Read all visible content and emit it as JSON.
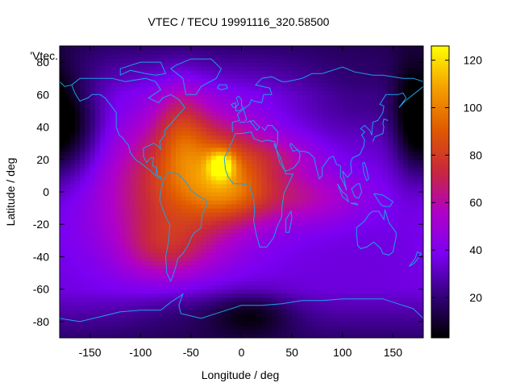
{
  "chart_data": {
    "type": "heatmap",
    "title": "VTEC / TECU 19991116_320.58500",
    "xlabel": "Longitude / deg",
    "ylabel": "Latitude / deg",
    "key_label": "'Vtec.",
    "xlim": [
      -180,
      180
    ],
    "ylim": [
      -90,
      90
    ],
    "x_ticks": [
      -150,
      -100,
      -50,
      0,
      50,
      100,
      150
    ],
    "y_ticks": [
      -80,
      -60,
      -40,
      -20,
      0,
      20,
      40,
      60,
      80
    ],
    "x_tick_labels": [
      "-150",
      "-100",
      "-50",
      "0",
      "50",
      "100",
      "150"
    ],
    "y_tick_labels": [
      "-80",
      "-60",
      "-40",
      "-20",
      "0",
      "20",
      "40",
      "60",
      "80"
    ],
    "colorbar": {
      "range": [
        3,
        126
      ],
      "ticks": [
        20,
        40,
        60,
        80,
        100,
        120
      ],
      "tick_labels": [
        "20",
        "40",
        "60",
        "80",
        "100",
        "120"
      ],
      "palette": [
        "#000000",
        "#33007a",
        "#7b00f2",
        "#b000c8",
        "#c8283c",
        "#e05a00",
        "#f5a000",
        "#ffff00"
      ]
    },
    "grid": false,
    "legend": "none",
    "overlay": "coastlines",
    "coast_color": "#1ca0e6",
    "tec_features": {
      "background_level": 35,
      "polar_low_level": 8,
      "peak_value": 126,
      "peak_location": {
        "lon": -20,
        "lat": 17
      },
      "blobs": [
        {
          "lon": -70,
          "lat": 0,
          "sx": 55,
          "sy": 32,
          "amp": 35
        },
        {
          "lon": -25,
          "lat": 15,
          "sx": 40,
          "sy": 22,
          "amp": 38
        },
        {
          "lon": -10,
          "lat": 0,
          "sx": 25,
          "sy": 12,
          "amp": 15
        },
        {
          "lon": -60,
          "lat": 42,
          "sx": 18,
          "sy": 20,
          "amp": 22
        },
        {
          "lon": 60,
          "lat": -3,
          "sx": 45,
          "sy": 12,
          "amp": 22
        },
        {
          "lon": 40,
          "lat": 22,
          "sx": 30,
          "sy": 9,
          "amp": 14
        },
        {
          "lon": -75,
          "lat": -35,
          "sx": 30,
          "sy": 14,
          "amp": 20
        },
        {
          "lon": -20,
          "lat": 17,
          "sx": 9,
          "sy": 6,
          "amp": 40
        }
      ],
      "lows": [
        {
          "lon": -165,
          "lat": 40,
          "sx": 20,
          "sy": 22,
          "amp": -26
        },
        {
          "lon": 170,
          "lat": 45,
          "sx": 15,
          "sy": 25,
          "amp": -26
        },
        {
          "lon": 10,
          "lat": -75,
          "sx": 30,
          "sy": 10,
          "amp": -20
        },
        {
          "lon": -60,
          "lat": -72,
          "sx": 40,
          "sy": 14,
          "amp": -8
        },
        {
          "lon": 120,
          "lat": 60,
          "sx": 45,
          "sy": 18,
          "amp": -12
        }
      ]
    }
  }
}
